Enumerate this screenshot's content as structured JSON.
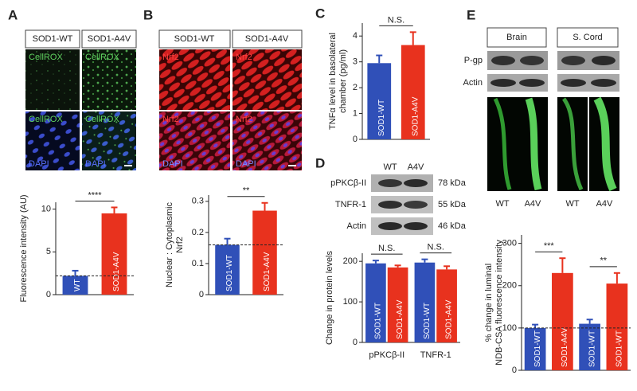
{
  "panels": {
    "letters": [
      "A",
      "B",
      "C",
      "D",
      "E"
    ]
  },
  "panel_a": {
    "columns": [
      "SOD1-WT",
      "SOD1-A4V"
    ],
    "stains": [
      "CellROX",
      "DAPI"
    ]
  },
  "panel_b": {
    "columns": [
      "SOD1-WT",
      "SOD1-A4V"
    ],
    "stains": [
      "Nrf2",
      "DAPI"
    ]
  },
  "panel_d_blot": {
    "columns": [
      "WT",
      "A4V"
    ],
    "rows": [
      {
        "label": "pPKCβ-II",
        "size": "78 kDa"
      },
      {
        "label": "TNFR-1",
        "size": "55 kDa"
      },
      {
        "label": "Actin",
        "size": "46 kDa"
      }
    ]
  },
  "panel_e_blot": {
    "columns": [
      "Brain",
      "S. Cord"
    ],
    "rows": [
      "P-gp",
      "Actin"
    ],
    "image_labels": [
      "WT",
      "A4V",
      "WT",
      "A4V"
    ]
  },
  "chart_data": [
    {
      "type": "bar",
      "ylabel": "Fluorescence intensity (AU)",
      "categories": [
        "WT",
        "SOD1-A4V"
      ],
      "values": [
        2.2,
        9.5
      ],
      "errors": [
        0.6,
        0.7
      ],
      "colors": [
        "#3050b8",
        "#e8321e"
      ],
      "ylim": [
        0,
        10.8
      ],
      "yticks": [
        0,
        5,
        10
      ],
      "reference_line": 2.2,
      "annotations": [
        "****"
      ]
    },
    {
      "type": "bar",
      "ylabel": [
        "Nuclear : Cytoplasmic",
        "Nrf2"
      ],
      "categories": [
        "SOD1-WT",
        "SOD1-A4V"
      ],
      "values": [
        0.16,
        0.27
      ],
      "errors": [
        0.02,
        0.025
      ],
      "colors": [
        "#3050b8",
        "#e8321e"
      ],
      "ylim": [
        0,
        0.32
      ],
      "yticks": [
        0,
        0.1,
        0.2,
        0.3
      ],
      "reference_line": 0.16,
      "annotations": [
        "**"
      ]
    },
    {
      "type": "bar",
      "ylabel": [
        "TNFα level in basolateral",
        "chamber (pg/ml)"
      ],
      "categories": [
        "SOD1-WT",
        "SOD1-A4V"
      ],
      "values": [
        2.95,
        3.65
      ],
      "errors": [
        0.3,
        0.5
      ],
      "colors": [
        "#3050b8",
        "#e8321e"
      ],
      "ylim": [
        0,
        4.5
      ],
      "yticks": [
        0,
        1,
        2,
        3,
        4
      ],
      "annotations": [
        "N.S."
      ]
    },
    {
      "type": "grouped_bar",
      "ylabel": "Change in protein levels",
      "categories": [
        "pPKCβ-II",
        "TNFR-1"
      ],
      "series": [
        {
          "name": "SOD1-WT",
          "color": "#3050b8",
          "values": [
            195,
            197
          ],
          "errors": [
            7,
            8
          ]
        },
        {
          "name": "SOD1-A4V",
          "color": "#e8321e",
          "values": [
            185,
            180
          ],
          "errors": [
            5,
            8
          ]
        }
      ],
      "ylim": [
        0,
        220
      ],
      "yticks": [
        0,
        100,
        200
      ],
      "annotations": [
        "N.S.",
        "N.S."
      ]
    },
    {
      "type": "bar",
      "ylabel": [
        "% change in luminal",
        "NDB-CSA fluorescence intensity"
      ],
      "categories": [
        "SOD1-WT",
        "SOD1-A4V",
        "SOD1-WT",
        "SOD1-WT"
      ],
      "values": [
        100,
        230,
        110,
        205
      ],
      "errors": [
        8,
        35,
        10,
        25
      ],
      "colors": [
        "#3050b8",
        "#e8321e",
        "#3050b8",
        "#e8321e"
      ],
      "ylim": [
        0,
        320
      ],
      "yticks": [
        0,
        100,
        200,
        300
      ],
      "reference_line": 100,
      "annotations": [
        "***",
        "**"
      ]
    }
  ]
}
